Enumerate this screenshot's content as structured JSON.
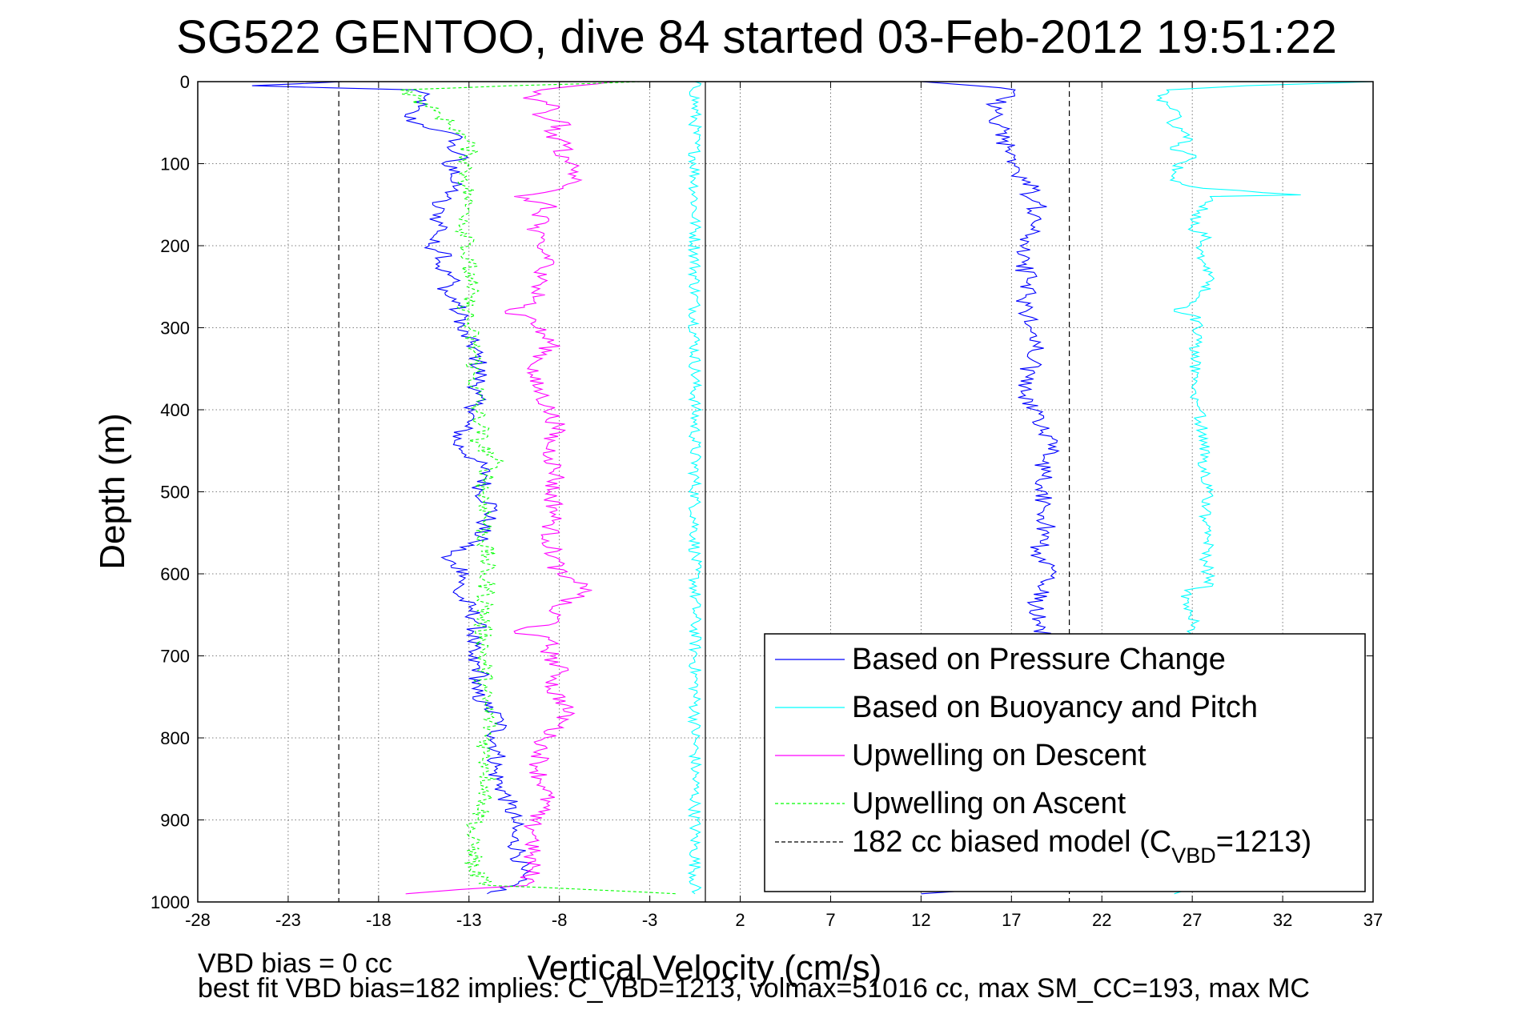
{
  "chart_data": {
    "type": "line",
    "title": "SG522 GENTOO, dive 84 started 03-Feb-2012 19:51:22",
    "xlabel": "Vertical Velocity (cm/s)",
    "ylabel": "Depth (m)",
    "xlim": [
      -28,
      37
    ],
    "ylim": [
      0,
      1000
    ],
    "y_reversed": true,
    "grid": true,
    "xticks": [
      -28,
      -23,
      -18,
      -13,
      -8,
      -3,
      2,
      7,
      12,
      17,
      22,
      27,
      32,
      37
    ],
    "yticks": [
      0,
      100,
      200,
      300,
      400,
      500,
      600,
      700,
      800,
      900,
      1000
    ],
    "legend_position": "lower-right",
    "series": [
      {
        "name": "Based on Pressure Change",
        "color": "#0000ff",
        "style": "solid",
        "descent": {
          "depth": [
            0,
            5,
            10,
            20,
            30,
            40,
            50,
            60,
            70,
            80,
            90,
            100,
            110,
            120,
            130,
            140,
            150,
            160,
            170,
            180,
            190,
            200,
            210,
            220,
            230,
            240,
            250,
            260,
            270,
            280,
            290,
            300,
            320,
            340,
            360,
            380,
            400,
            420,
            440,
            460,
            480,
            500,
            520,
            540,
            560,
            580,
            600,
            620,
            640,
            660,
            680,
            700,
            720,
            740,
            760,
            780,
            800,
            820,
            840,
            860,
            880,
            900,
            920,
            940,
            960,
            980,
            990
          ],
          "velocity": [
            -20,
            -25,
            -16,
            -15.5,
            -15.8,
            -16.5,
            -16,
            -14.5,
            -13.5,
            -14.2,
            -13.2,
            -14.5,
            -13.5,
            -14,
            -13.8,
            -14.2,
            -15,
            -14.5,
            -14.8,
            -14.3,
            -15,
            -15.2,
            -14,
            -14.6,
            -14.5,
            -13.8,
            -14.2,
            -14.3,
            -13.5,
            -13.8,
            -13.2,
            -13.6,
            -12.8,
            -12.5,
            -12.4,
            -12.6,
            -12.7,
            -13.2,
            -13.8,
            -12.7,
            -12,
            -12.4,
            -11.6,
            -12.2,
            -12.5,
            -14.5,
            -13,
            -13.8,
            -13,
            -12.5,
            -12.8,
            -13,
            -12.3,
            -12.8,
            -12.1,
            -11.2,
            -11.6,
            -11.4,
            -11.6,
            -11.2,
            -10.8,
            -10.5,
            -10.6,
            -10.2,
            -10.1,
            -10.5,
            -12
          ]
        },
        "ascent": {
          "depth": [
            990,
            980,
            960,
            940,
            920,
            900,
            880,
            860,
            840,
            820,
            800,
            780,
            760,
            740,
            720,
            700,
            680,
            660,
            640,
            620,
            600,
            580,
            560,
            540,
            520,
            500,
            480,
            460,
            440,
            420,
            400,
            380,
            360,
            340,
            320,
            300,
            280,
            260,
            240,
            220,
            200,
            190,
            180,
            170,
            160,
            150,
            140,
            130,
            120,
            110,
            100,
            90,
            80,
            70,
            60,
            50,
            40,
            30,
            20,
            10,
            5,
            0
          ],
          "velocity": [
            12,
            18.2,
            18.1,
            18.3,
            18.6,
            18.4,
            18.7,
            19,
            18.8,
            19.1,
            18.9,
            19,
            19.3,
            19.1,
            19,
            18.8,
            18.7,
            18.6,
            18.4,
            18.6,
            19.3,
            18.5,
            18.6,
            19,
            18.8,
            18.9,
            18.7,
            18.8,
            19.5,
            18.6,
            18.3,
            17.6,
            17.8,
            18.2,
            18.4,
            18.1,
            17.8,
            17.8,
            17.9,
            17.6,
            17.5,
            17.9,
            18.1,
            18.3,
            17.9,
            18.6,
            17.8,
            18.2,
            17.6,
            17.4,
            17.2,
            17.2,
            16.8,
            16.5,
            16.6,
            15.8,
            16.5,
            15.9,
            16.6,
            17.2,
            15,
            12
          ]
        }
      },
      {
        "name": "Based on Buoyancy and Pitch",
        "color": "#00ffff",
        "style": "solid",
        "descent": {
          "depth": [
            0,
            990
          ],
          "velocity": [
            -0.5,
            -0.5
          ]
        },
        "ascent": {
          "depth": [
            990,
            980,
            960,
            940,
            920,
            900,
            880,
            860,
            840,
            820,
            800,
            780,
            760,
            740,
            720,
            700,
            680,
            660,
            640,
            620,
            615,
            600,
            580,
            560,
            540,
            520,
            500,
            480,
            460,
            440,
            420,
            400,
            380,
            360,
            340,
            320,
            300,
            285,
            280,
            260,
            240,
            220,
            200,
            185,
            180,
            160,
            150,
            140,
            138,
            130,
            120,
            110,
            100,
            90,
            80,
            70,
            60,
            50,
            40,
            30,
            20,
            10,
            5,
            0
          ],
          "velocity": [
            26,
            27,
            26.8,
            27.1,
            27,
            26.9,
            27.1,
            27.2,
            26.9,
            27,
            27.1,
            26.9,
            27.2,
            27,
            27.1,
            26.9,
            27,
            27.1,
            26.8,
            26.6,
            28.1,
            27.9,
            27.7,
            27.9,
            27.8,
            27.7,
            27.9,
            27.8,
            27.6,
            27.8,
            27.5,
            27.4,
            27.2,
            27.3,
            27.1,
            27.2,
            27.3,
            27.1,
            26,
            27.4,
            28.2,
            27.6,
            27.5,
            27.8,
            26.8,
            27.4,
            27.7,
            28,
            33,
            27.6,
            25.8,
            26.1,
            26.2,
            27.2,
            25.8,
            27,
            26.4,
            25.6,
            26.3,
            25.7,
            25.3,
            25.6,
            30,
            37
          ]
        }
      },
      {
        "name": "Upwelling on Descent",
        "color": "#ff00ff",
        "style": "solid",
        "depth": [
          0,
          10,
          20,
          30,
          40,
          50,
          60,
          70,
          80,
          90,
          100,
          110,
          120,
          130,
          140,
          150,
          160,
          170,
          180,
          190,
          200,
          210,
          220,
          230,
          240,
          250,
          260,
          270,
          280,
          290,
          300,
          320,
          340,
          360,
          380,
          400,
          420,
          440,
          460,
          480,
          500,
          520,
          540,
          560,
          580,
          600,
          610,
          620,
          640,
          660,
          670,
          680,
          700,
          720,
          740,
          760,
          780,
          800,
          820,
          840,
          860,
          880,
          900,
          920,
          940,
          960,
          980,
          990
        ],
        "velocity": [
          -5,
          -9,
          -10,
          -8,
          -9.5,
          -7.5,
          -8.8,
          -8,
          -7.5,
          -8.2,
          -7.3,
          -7,
          -6.8,
          -7.8,
          -10.5,
          -8.5,
          -9.2,
          -8.6,
          -9.8,
          -9,
          -9.2,
          -8.8,
          -8.3,
          -9.2,
          -9,
          -9.5,
          -8.8,
          -9.3,
          -11,
          -9.3,
          -9.3,
          -8.4,
          -9.2,
          -9.6,
          -9,
          -8.6,
          -8.1,
          -8.6,
          -8.4,
          -8.1,
          -8.5,
          -8.2,
          -8.4,
          -8.6,
          -8.2,
          -8.1,
          -7.2,
          -6.2,
          -8.4,
          -8.2,
          -10.5,
          -8.6,
          -8.5,
          -7.9,
          -8.5,
          -7.6,
          -7.8,
          -8.8,
          -9,
          -9.2,
          -8.8,
          -8.7,
          -9.6,
          -9.3,
          -9.6,
          -9.5,
          -9.8,
          -16.5
        ]
      },
      {
        "name": "Upwelling on Ascent",
        "color": "#00ff00",
        "style": "dashed",
        "depth": [
          0,
          10,
          20,
          30,
          40,
          50,
          60,
          70,
          80,
          90,
          100,
          110,
          120,
          130,
          140,
          150,
          160,
          170,
          180,
          190,
          200,
          210,
          220,
          230,
          240,
          250,
          260,
          270,
          280,
          290,
          300,
          320,
          340,
          360,
          380,
          400,
          420,
          440,
          460,
          480,
          500,
          520,
          540,
          560,
          580,
          600,
          620,
          640,
          660,
          680,
          700,
          720,
          740,
          760,
          780,
          800,
          820,
          840,
          860,
          880,
          900,
          920,
          940,
          960,
          980,
          990
        ],
        "velocity": [
          -3.5,
          -16.8,
          -15.8,
          -15.4,
          -14.6,
          -14.2,
          -13.5,
          -13.2,
          -13,
          -13.1,
          -13,
          -13.2,
          -13.1,
          -13.2,
          -13,
          -13.2,
          -13,
          -13.1,
          -13.4,
          -12.8,
          -12.9,
          -13.3,
          -13,
          -13.1,
          -12.8,
          -13.1,
          -12.9,
          -13.2,
          -13,
          -13.1,
          -13,
          -12.8,
          -12.6,
          -12.8,
          -12.5,
          -12.6,
          -12.3,
          -12.5,
          -11.6,
          -12,
          -12.2,
          -12,
          -12.1,
          -12.2,
          -12,
          -12.1,
          -12,
          -12.1,
          -12.3,
          -12.1,
          -12.2,
          -12.1,
          -12.2,
          -12.1,
          -11.8,
          -12,
          -12.1,
          -11.9,
          -12,
          -12.1,
          -12.5,
          -13,
          -12.6,
          -12.9,
          -11.8,
          -1.5
        ]
      },
      {
        "name": "182 cc biased model (C",
        "name_subscript": "VBD",
        "name_suffix": "=1213)",
        "color": "#000000",
        "style": "dashed",
        "lines": [
          {
            "depth": [
              0,
              1000
            ],
            "velocity": [
              -20.2,
              -20.2
            ]
          },
          {
            "depth": [
              0,
              1000
            ],
            "velocity": [
              20.2,
              20.2
            ]
          }
        ]
      }
    ],
    "footer_line1": "VBD bias = 0 cc",
    "footer_line2": "best fit VBD bias=182 implies: C_VBD=1213, volmax=51016 cc, max SM_CC=193, max MC"
  }
}
